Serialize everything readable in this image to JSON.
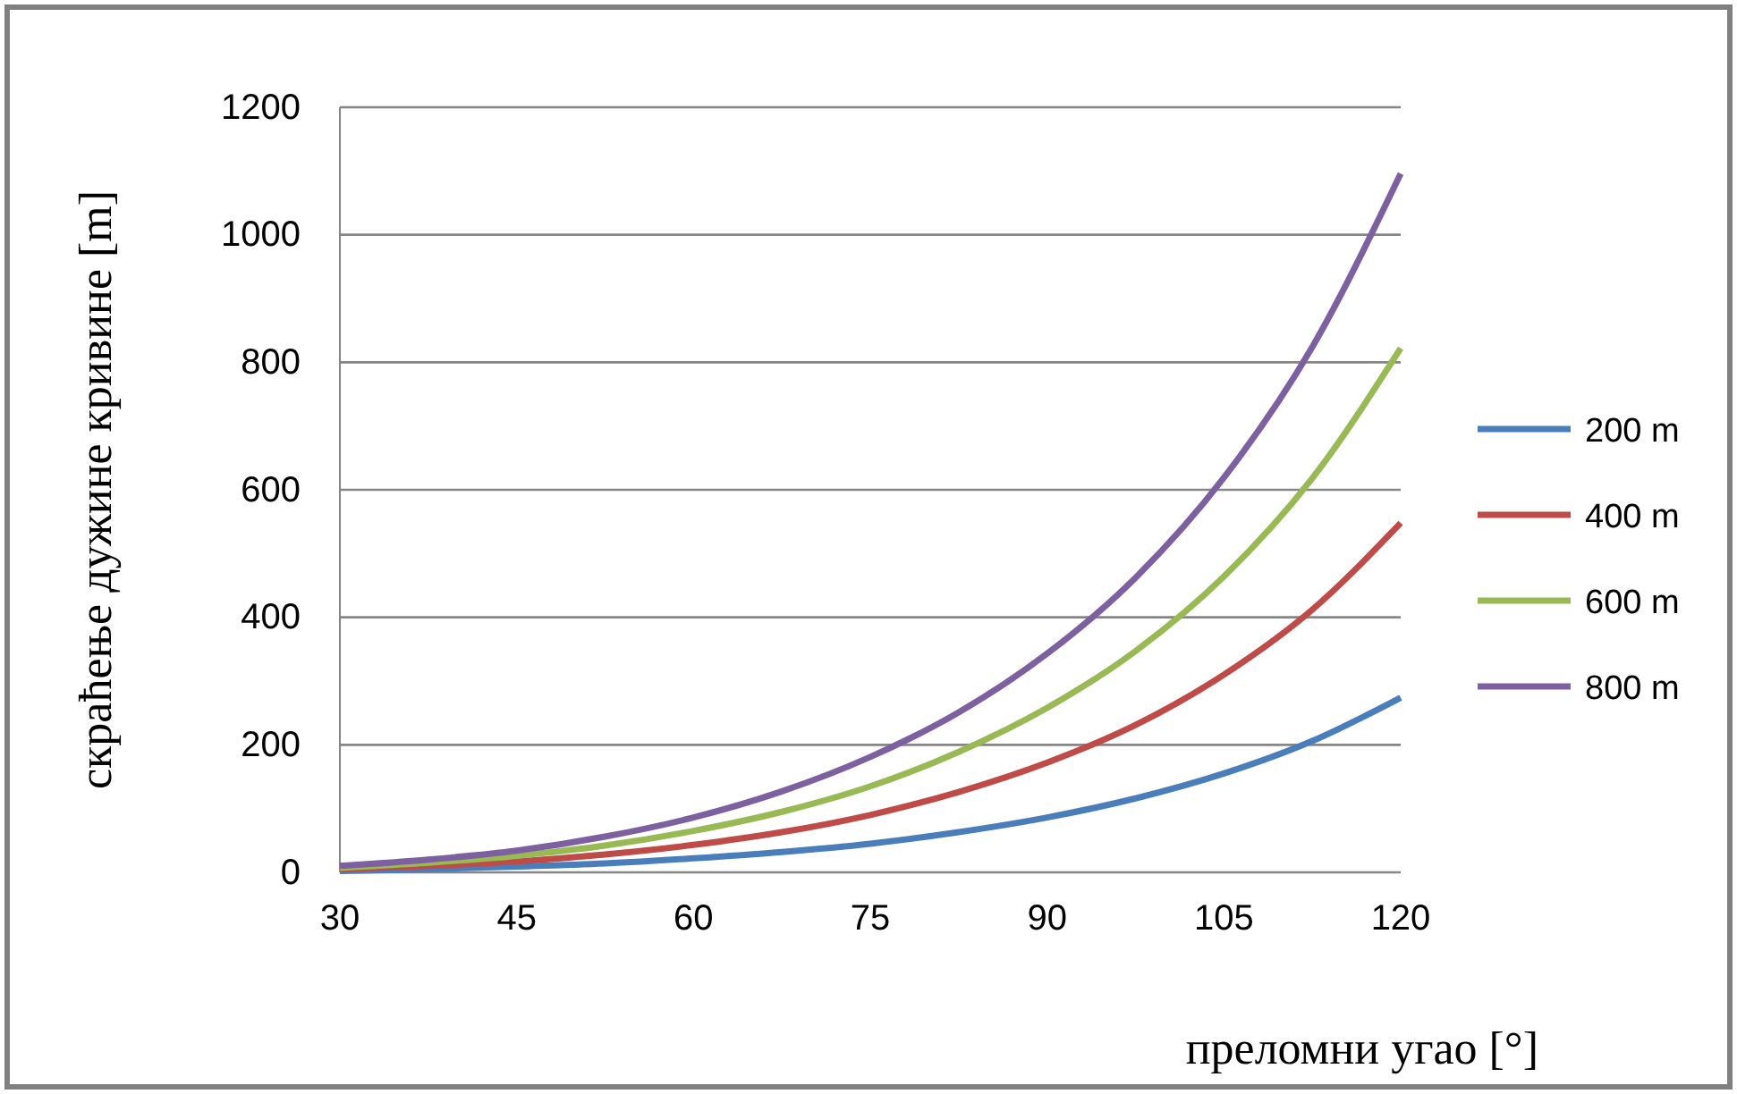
{
  "chart_data": {
    "type": "line",
    "xlabel": "преломни угао  [°]",
    "ylabel": "скраћење дужине кривине [m]",
    "x": [
      30,
      37.5,
      45,
      52.5,
      60,
      67.5,
      75,
      82.5,
      90,
      97.5,
      105,
      112.5,
      120
    ],
    "xlim": [
      30,
      120
    ],
    "xticks": [
      30,
      45,
      60,
      75,
      90,
      105,
      120
    ],
    "ylim": [
      0,
      1200
    ],
    "yticks": [
      0,
      200,
      400,
      600,
      800,
      1000,
      1200
    ],
    "grid": "y",
    "legend": "right",
    "marker": "none",
    "line_style": "solid",
    "series": [
      {
        "name": "200 m",
        "color": "#4a7ebb",
        "values": [
          2,
          5,
          9,
          14,
          22,
          32,
          45,
          63,
          86,
          116,
          155,
          206,
          274
        ]
      },
      {
        "name": "400 m",
        "color": "#be4b48",
        "values": [
          5,
          10,
          17,
          28,
          43,
          63,
          90,
          126,
          172,
          231,
          310,
          412,
          548
        ]
      },
      {
        "name": "600 m",
        "color": "#98b954",
        "values": [
          7,
          15,
          26,
          42,
          65,
          95,
          135,
          189,
          258,
          347,
          464,
          618,
          822
        ]
      },
      {
        "name": "800 m",
        "color": "#7d60a0",
        "values": [
          10,
          20,
          34,
          56,
          86,
          127,
          181,
          251,
          343,
          462,
          619,
          824,
          1096
        ]
      }
    ]
  }
}
